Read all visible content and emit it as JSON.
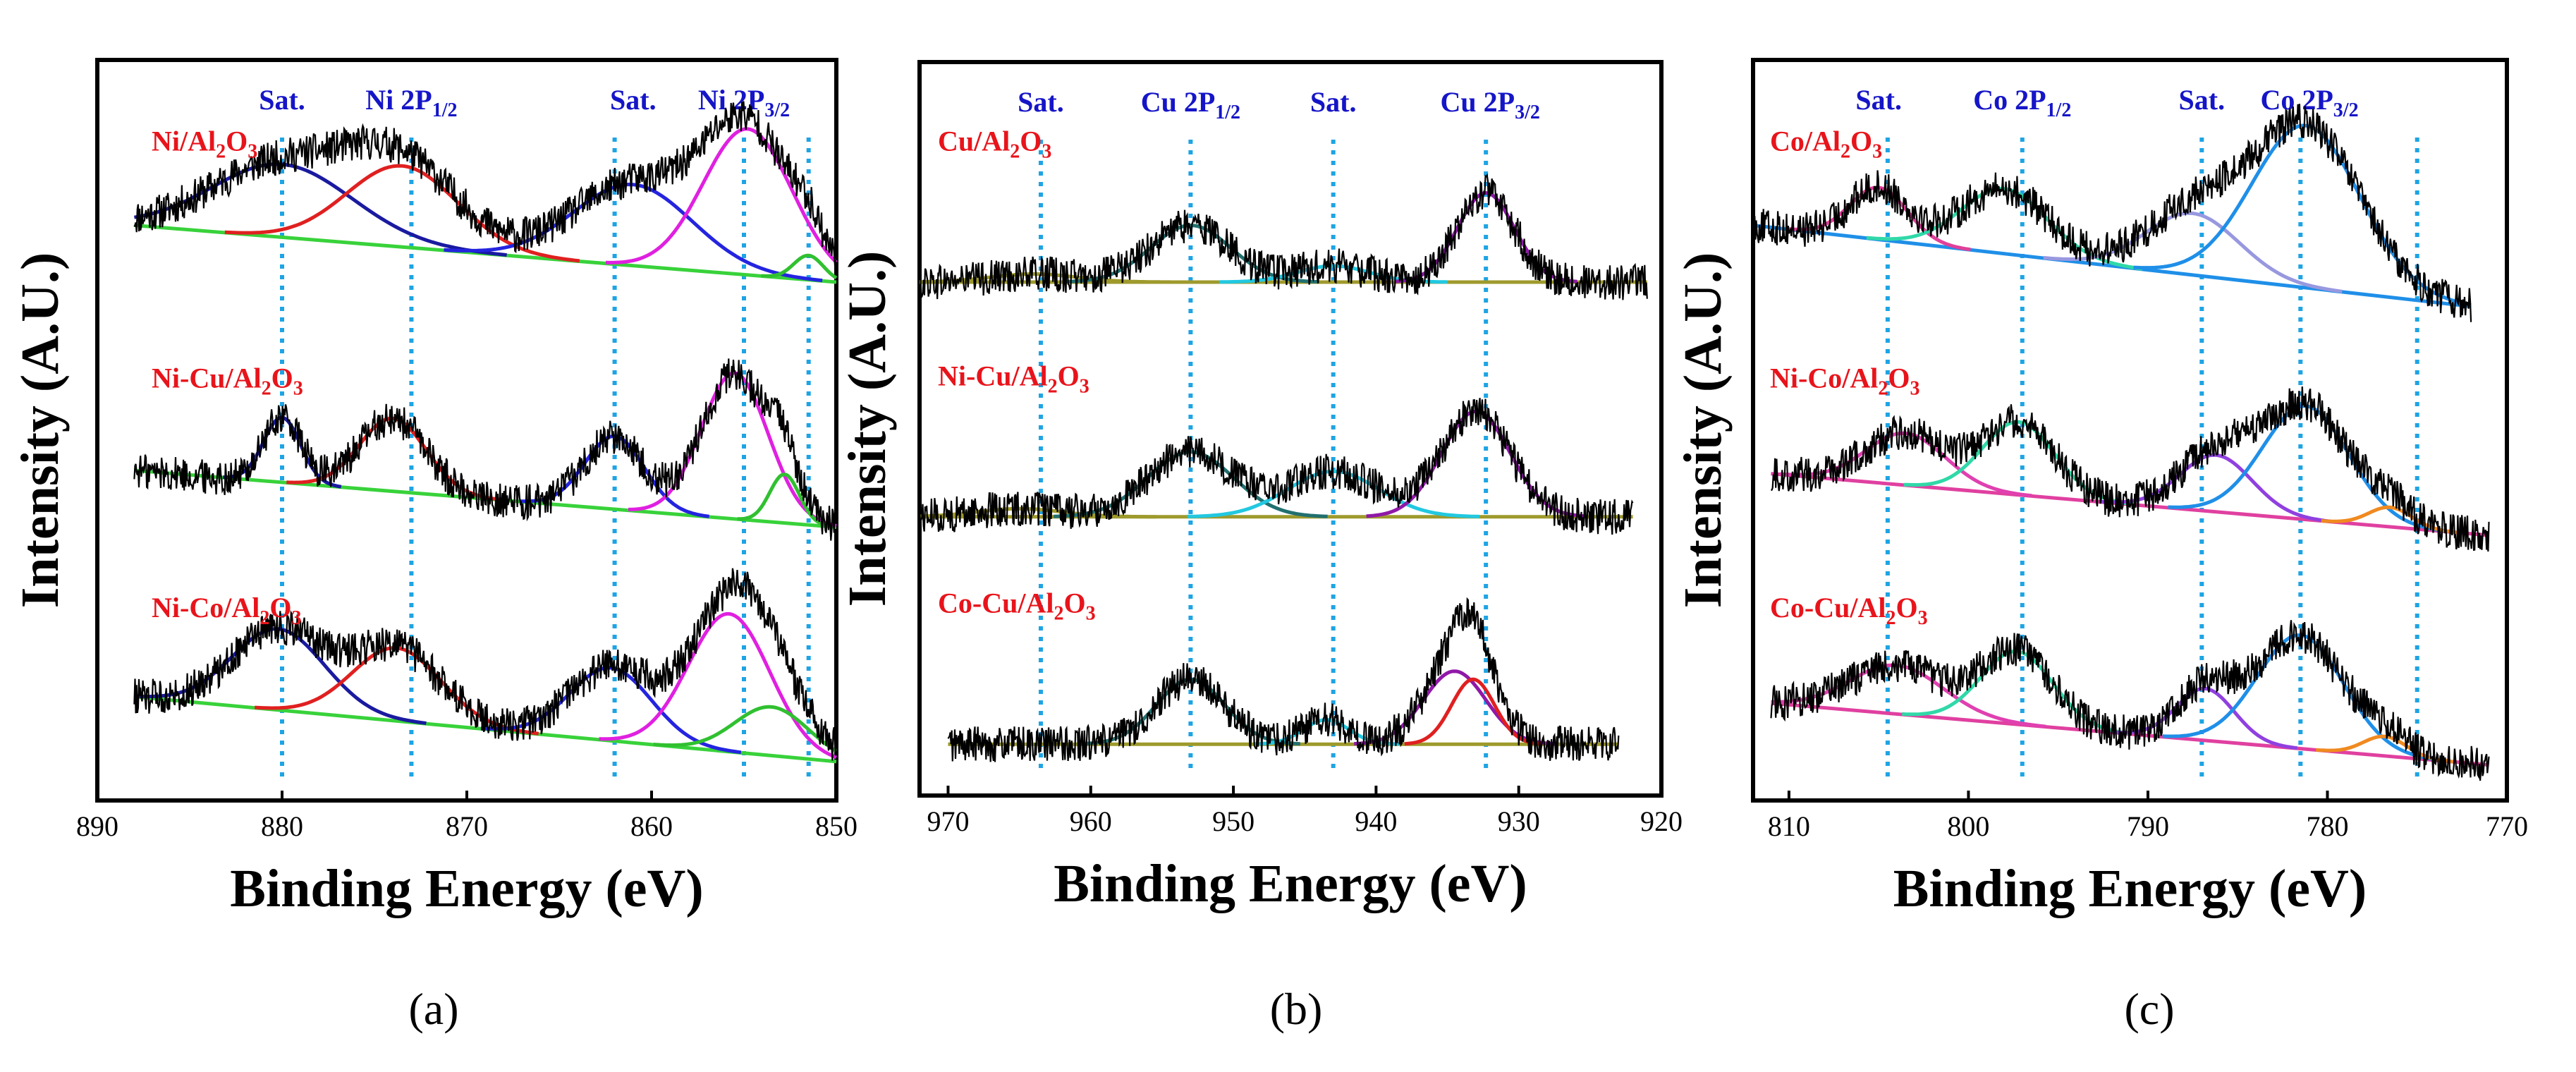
{
  "chart_data": [
    {
      "type": "line",
      "panel_label": "(a)",
      "xlabel": "Binding Energy (eV)",
      "ylabel": "Intensity (A.U.)",
      "xlim": [
        890,
        850
      ],
      "xticks": [
        890,
        880,
        870,
        860,
        850
      ],
      "reference_lines": [
        880,
        873,
        862,
        855,
        851.5
      ],
      "peak_labels": [
        {
          "base": "Sat.",
          "sub": "",
          "x": 880
        },
        {
          "base": "Ni 2P",
          "sub": "1/2",
          "x": 873
        },
        {
          "base": "Sat.",
          "sub": "",
          "x": 861
        },
        {
          "base": "Ni 2P",
          "sub": "3/2",
          "x": 855
        }
      ],
      "series": [
        {
          "name": "Ni/Al2O3",
          "label_parts": [
            "Ni/Al",
            "2",
            "O",
            "3"
          ],
          "offset": 2.0,
          "x_range": [
            888,
            850
          ],
          "background": [
            0.35,
            0.0
          ],
          "background_color": "#38d23a",
          "peaks": [
            {
              "center": 880,
              "width": 3.8,
              "height": 0.45,
              "color": "#1a1aa0"
            },
            {
              "center": 873.5,
              "width": 3.0,
              "height": 0.5,
              "color": "#e02020"
            },
            {
              "center": 861,
              "width": 3.2,
              "height": 0.5,
              "color": "#2424e0"
            },
            {
              "center": 854.8,
              "width": 2.4,
              "height": 0.9,
              "color": "#e020e0"
            },
            {
              "center": 851.5,
              "width": 0.8,
              "height": 0.15,
              "color": "#30c030"
            }
          ]
        },
        {
          "name": "Ni-Cu/Al2O3",
          "label_parts": [
            "Ni-Cu/Al",
            "2",
            "O",
            "3"
          ],
          "offset": 1.0,
          "x_range": [
            888,
            850
          ],
          "background": [
            0.3,
            -0.05
          ],
          "background_color": "#38d23a",
          "peaks": [
            {
              "center": 880,
              "width": 1.0,
              "height": 0.4,
              "color": "#1a1aa0"
            },
            {
              "center": 874,
              "width": 1.8,
              "height": 0.45,
              "color": "#e02020"
            },
            {
              "center": 862,
              "width": 1.6,
              "height": 0.45,
              "color": "#2424e0"
            },
            {
              "center": 855.5,
              "width": 1.8,
              "height": 0.9,
              "color": "#e020e0"
            },
            {
              "center": 852.8,
              "width": 0.8,
              "height": 0.3,
              "color": "#30c030"
            }
          ]
        },
        {
          "name": "Ni-Co/Al2O3",
          "label_parts": [
            "Ni-Co/Al",
            "2",
            "O",
            "3"
          ],
          "offset": 0.0,
          "x_range": [
            888,
            850
          ],
          "background": [
            0.32,
            -0.08
          ],
          "background_color": "#38d23a",
          "peaks": [
            {
              "center": 880.2,
              "width": 2.5,
              "height": 0.5,
              "color": "#1a1aa0"
            },
            {
              "center": 873.8,
              "width": 2.4,
              "height": 0.45,
              "color": "#e02020"
            },
            {
              "center": 862.2,
              "width": 2.2,
              "height": 0.45,
              "color": "#2424e0"
            },
            {
              "center": 855.8,
              "width": 2.2,
              "height": 0.85,
              "color": "#e020e0"
            },
            {
              "center": 853.5,
              "width": 2.0,
              "height": 0.3,
              "color": "#30c030"
            }
          ]
        }
      ]
    },
    {
      "type": "line",
      "panel_label": "(b)",
      "xlabel": "Binding Energy (eV)",
      "ylabel": "Intensity (A.U.)",
      "xlim": [
        972,
        920
      ],
      "xticks": [
        970,
        960,
        950,
        940,
        930,
        920
      ],
      "reference_lines": [
        963.5,
        953,
        943,
        932.3
      ],
      "peak_labels": [
        {
          "base": "Sat.",
          "sub": "",
          "x": 963.5
        },
        {
          "base": "Cu 2P",
          "sub": "1/2",
          "x": 953
        },
        {
          "base": "Sat.",
          "sub": "",
          "x": 943
        },
        {
          "base": "Cu 2P",
          "sub": "3/2",
          "x": 932
        }
      ],
      "series": [
        {
          "name": "Cu/Al2O3",
          "label_parts": [
            "Cu/Al",
            "2",
            "O",
            "3"
          ],
          "offset": 2.0,
          "x_range": [
            972,
            921
          ],
          "background": [
            0.0,
            0.0
          ],
          "background_color": "#9e9a2c",
          "peaks": [
            {
              "center": 964,
              "width": 3.0,
              "height": 0.05,
              "color": "#9e9a2c"
            },
            {
              "center": 953,
              "width": 2.8,
              "height": 0.35,
              "color": "#227070"
            },
            {
              "center": 943,
              "width": 2.5,
              "height": 0.1,
              "color": "#22c8e0"
            },
            {
              "center": 932.3,
              "width": 2.0,
              "height": 0.55,
              "color": "#9018a8"
            }
          ]
        },
        {
          "name": "Ni-Cu/Al2O3",
          "label_parts": [
            "Ni-Cu/Al",
            "2",
            "O",
            "3"
          ],
          "offset": 1.0,
          "x_range": [
            972,
            922
          ],
          "background": [
            0.0,
            0.0
          ],
          "background_color": "#9e9a2c",
          "peaks": [
            {
              "center": 965,
              "width": 3.0,
              "height": 0.05,
              "color": "#9e9a2c"
            },
            {
              "center": 953,
              "width": 3.0,
              "height": 0.4,
              "color": "#227070"
            },
            {
              "center": 943,
              "width": 3.2,
              "height": 0.28,
              "color": "#22c8e0"
            },
            {
              "center": 933,
              "width": 2.4,
              "height": 0.65,
              "color": "#9018a8"
            }
          ]
        },
        {
          "name": "Co-Cu/Al2O3",
          "label_parts": [
            "Co-Cu/Al",
            "2",
            "O",
            "3"
          ],
          "offset": 0.0,
          "x_range": [
            970,
            923
          ],
          "background": [
            0.0,
            0.0
          ],
          "background_color": "#9e9a2c",
          "peaks": [
            {
              "center": 953,
              "width": 2.4,
              "height": 0.4,
              "color": "#227070"
            },
            {
              "center": 943.5,
              "width": 1.6,
              "height": 0.15,
              "color": "#22c8e0"
            },
            {
              "center": 934.5,
              "width": 2.2,
              "height": 0.45,
              "color": "#9018a8"
            },
            {
              "center": 933.2,
              "width": 1.5,
              "height": 0.4,
              "color": "#e02020"
            }
          ]
        }
      ]
    },
    {
      "type": "line",
      "panel_label": "(c)",
      "xlabel": "Binding Energy (eV)",
      "ylabel": "Intensity (A.U.)",
      "xlim": [
        812,
        770
      ],
      "xticks": [
        810,
        800,
        790,
        780,
        770
      ],
      "reference_lines": [
        804.5,
        797,
        787,
        781.5,
        775
      ],
      "peak_labels": [
        {
          "base": "Sat.",
          "sub": "",
          "x": 805
        },
        {
          "base": "Co 2P",
          "sub": "1/2",
          "x": 797
        },
        {
          "base": "Sat.",
          "sub": "",
          "x": 787
        },
        {
          "base": "Co 2P",
          "sub": "3/2",
          "x": 781
        }
      ],
      "series": [
        {
          "name": "Co/Al2O3",
          "label_parts": [
            "Co/Al",
            "2",
            "O",
            "3"
          ],
          "offset": 2.0,
          "x_range": [
            812,
            772
          ],
          "background": [
            0.35,
            -0.15
          ],
          "background_color": "#1f8fe8",
          "peaks": [
            {
              "center": 805,
              "width": 1.6,
              "height": 0.32,
              "color": "#e0409a"
            },
            {
              "center": 798,
              "width": 2.4,
              "height": 0.4,
              "color": "#30d8a8"
            },
            {
              "center": 787.5,
              "width": 2.6,
              "height": 0.38,
              "color": "#9898e0"
            },
            {
              "center": 781.2,
              "width": 3.0,
              "height": 1.0,
              "color": "#1f8fe8"
            }
          ]
        },
        {
          "name": "Ni-Co/Al2O3",
          "label_parts": [
            "Ni-Co/Al",
            "2",
            "O",
            "3"
          ],
          "offset": 1.0,
          "x_range": [
            811,
            771
          ],
          "background": [
            0.28,
            -0.1
          ],
          "background_color": "#e040a0",
          "peaks": [
            {
              "center": 803.5,
              "width": 2.2,
              "height": 0.32,
              "color": "#e040b0"
            },
            {
              "center": 797.2,
              "width": 2.0,
              "height": 0.45,
              "color": "#30d8a8"
            },
            {
              "center": 786.2,
              "width": 2.0,
              "height": 0.35,
              "color": "#9040e0"
            },
            {
              "center": 781.2,
              "width": 2.4,
              "height": 0.7,
              "color": "#1f8fe8"
            },
            {
              "center": 776.5,
              "width": 1.2,
              "height": 0.12,
              "color": "#f08a20"
            }
          ]
        },
        {
          "name": "Co-Cu/Al2O3",
          "label_parts": [
            "Co-Cu/Al",
            "2",
            "O",
            "3"
          ],
          "offset": 0.0,
          "x_range": [
            811,
            771
          ],
          "background": [
            0.28,
            -0.1
          ],
          "background_color": "#e040a0",
          "peaks": [
            {
              "center": 804,
              "width": 2.6,
              "height": 0.3,
              "color": "#e040b0"
            },
            {
              "center": 797.3,
              "width": 2.0,
              "height": 0.45,
              "color": "#30d8a8"
            },
            {
              "center": 786.8,
              "width": 1.6,
              "height": 0.32,
              "color": "#9040e0"
            },
            {
              "center": 781.5,
              "width": 2.4,
              "height": 0.7,
              "color": "#1f8fe8"
            },
            {
              "center": 776.8,
              "width": 1.2,
              "height": 0.12,
              "color": "#f08a20"
            }
          ]
        }
      ]
    }
  ]
}
